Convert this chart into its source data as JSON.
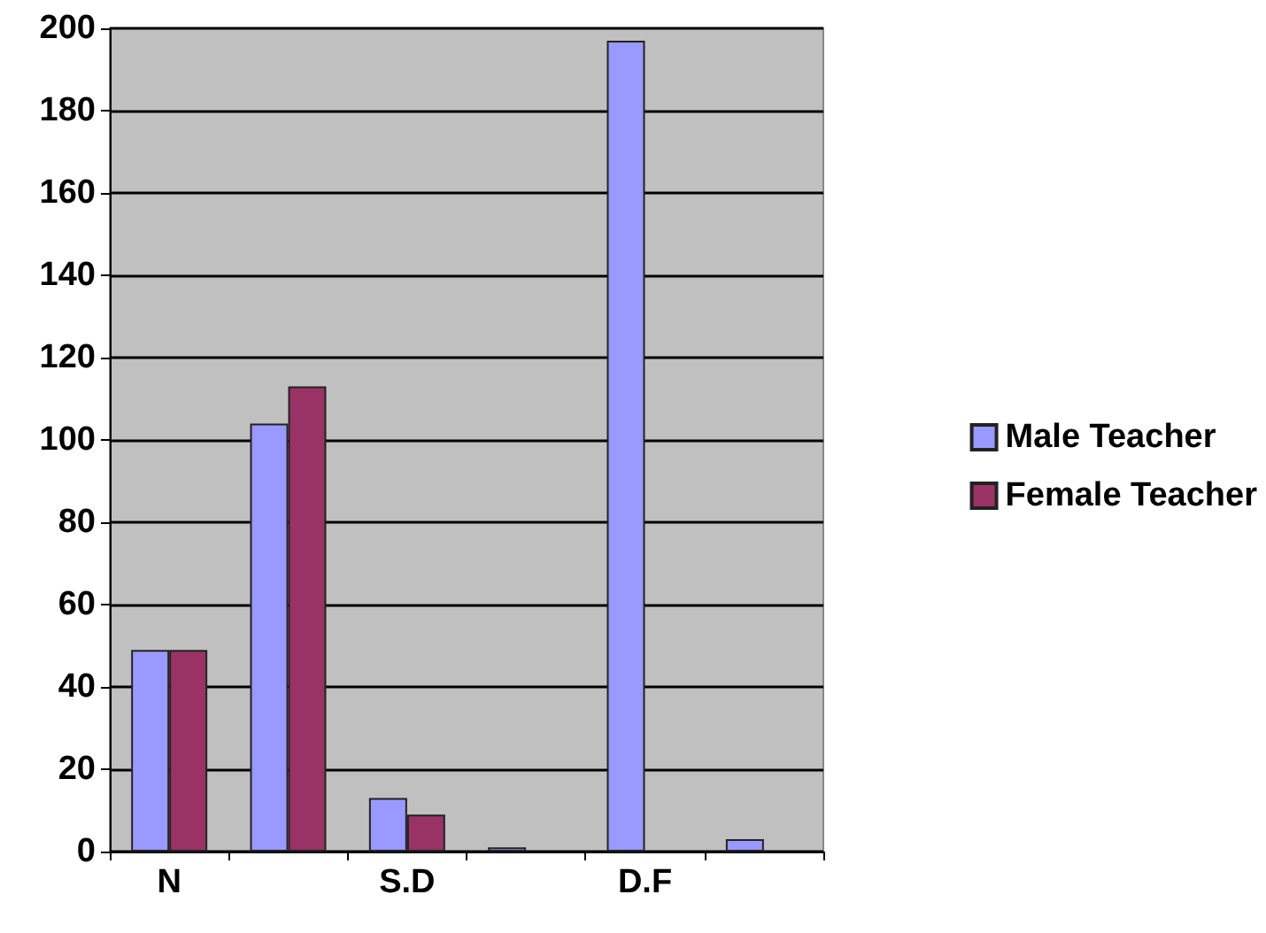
{
  "chart_data": {
    "type": "bar",
    "categories": [
      "N",
      null,
      "S.D",
      null,
      "D.F",
      null
    ],
    "series": [
      {
        "name": "Male Teacher",
        "color": "#9999ff",
        "values": [
          49,
          104,
          13,
          1,
          197,
          3
        ]
      },
      {
        "name": "Female Teacher",
        "color": "#993366",
        "values": [
          49,
          113,
          9,
          null,
          null,
          null
        ]
      }
    ],
    "ylim": [
      0,
      200
    ],
    "yticks": [
      0,
      20,
      40,
      60,
      80,
      100,
      120,
      140,
      160,
      180,
      200
    ],
    "grid": "y",
    "legend": "right"
  }
}
